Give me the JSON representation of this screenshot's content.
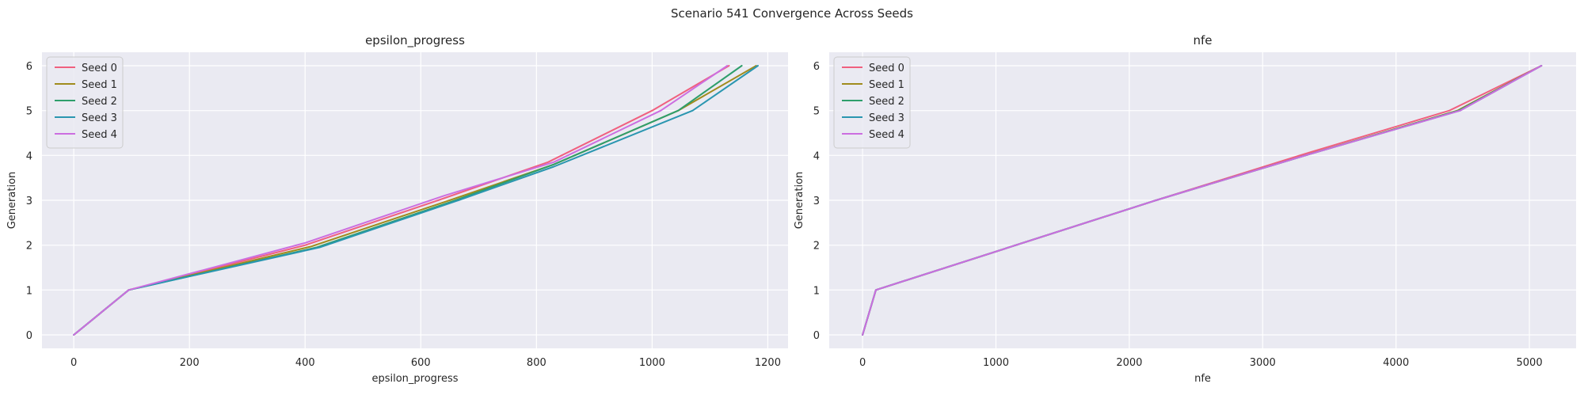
{
  "figure": {
    "title": "Scenario 541 Convergence Across Seeds"
  },
  "colors": {
    "panel_bg": "#eaeaf2",
    "grid": "#ffffff",
    "seed_0": "#f0607f",
    "seed_1": "#a08b1d",
    "seed_2": "#2e9e6b",
    "seed_3": "#2a96b0",
    "seed_4": "#cc6ee0"
  },
  "chart_data": [
    {
      "type": "line",
      "title": "epsilon_progress",
      "xlabel": "epsilon_progress",
      "ylabel": "Generation",
      "xlim": [
        -55,
        1235
      ],
      "ylim": [
        -0.3,
        6.3
      ],
      "xticks": [
        0,
        200,
        400,
        600,
        800,
        1000,
        1200
      ],
      "yticks": [
        0,
        1,
        2,
        3,
        4,
        5,
        6
      ],
      "grid": true,
      "legend_position": "top-left",
      "series": [
        {
          "name": "Seed 0",
          "color": "#f0607f",
          "x": [
            0,
            95,
            400,
            630,
            820,
            1000,
            1133
          ],
          "y": [
            0,
            1,
            2,
            3,
            3.85,
            5,
            6
          ]
        },
        {
          "name": "Seed 1",
          "color": "#a08b1d",
          "x": [
            0,
            95,
            410,
            650,
            830,
            1045,
            1180
          ],
          "y": [
            0,
            1,
            1.97,
            3,
            3.8,
            5,
            6
          ]
        },
        {
          "name": "Seed 2",
          "color": "#2e9e6b",
          "x": [
            0,
            95,
            420,
            660,
            830,
            1045,
            1155
          ],
          "y": [
            0,
            1,
            1.95,
            3,
            3.8,
            5,
            6
          ]
        },
        {
          "name": "Seed 3",
          "color": "#2a96b0",
          "x": [
            0,
            95,
            425,
            665,
            830,
            1070,
            1183
          ],
          "y": [
            0,
            1,
            1.95,
            3,
            3.75,
            5,
            6
          ]
        },
        {
          "name": "Seed 4",
          "color": "#cc6ee0",
          "x": [
            0,
            95,
            400,
            640,
            830,
            1015,
            1130
          ],
          "y": [
            0,
            1,
            2.05,
            3.1,
            3.85,
            5,
            6
          ]
        }
      ]
    },
    {
      "type": "line",
      "title": "nfe",
      "xlabel": "nfe",
      "ylabel": "Generation",
      "xlim": [
        -250,
        5350
      ],
      "ylim": [
        -0.3,
        6.3
      ],
      "xticks": [
        0,
        1000,
        2000,
        3000,
        4000,
        5000
      ],
      "yticks": [
        0,
        1,
        2,
        3,
        4,
        5,
        6
      ],
      "grid": true,
      "legend_position": "top-left",
      "series": [
        {
          "name": "Seed 0",
          "color": "#f0607f",
          "x": [
            0,
            100,
            2200,
            3300,
            4400,
            5090
          ],
          "y": [
            0,
            1,
            3,
            4.02,
            5,
            6
          ]
        },
        {
          "name": "Seed 1",
          "color": "#a08b1d",
          "x": [
            0,
            100,
            2200,
            3320,
            4460,
            5090
          ],
          "y": [
            0,
            1,
            3,
            4,
            5,
            6
          ]
        },
        {
          "name": "Seed 2",
          "color": "#2e9e6b",
          "x": [
            0,
            100,
            2200,
            3320,
            4470,
            5090
          ],
          "y": [
            0,
            1,
            3,
            4,
            5,
            6
          ]
        },
        {
          "name": "Seed 3",
          "color": "#2a96b0",
          "x": [
            0,
            100,
            2200,
            3320,
            4480,
            5090
          ],
          "y": [
            0,
            1,
            3,
            4,
            5,
            6
          ]
        },
        {
          "name": "Seed 4",
          "color": "#cc6ee0",
          "x": [
            0,
            100,
            2200,
            3320,
            4480,
            5090
          ],
          "y": [
            0,
            1,
            3,
            4,
            5,
            6
          ]
        }
      ]
    }
  ]
}
